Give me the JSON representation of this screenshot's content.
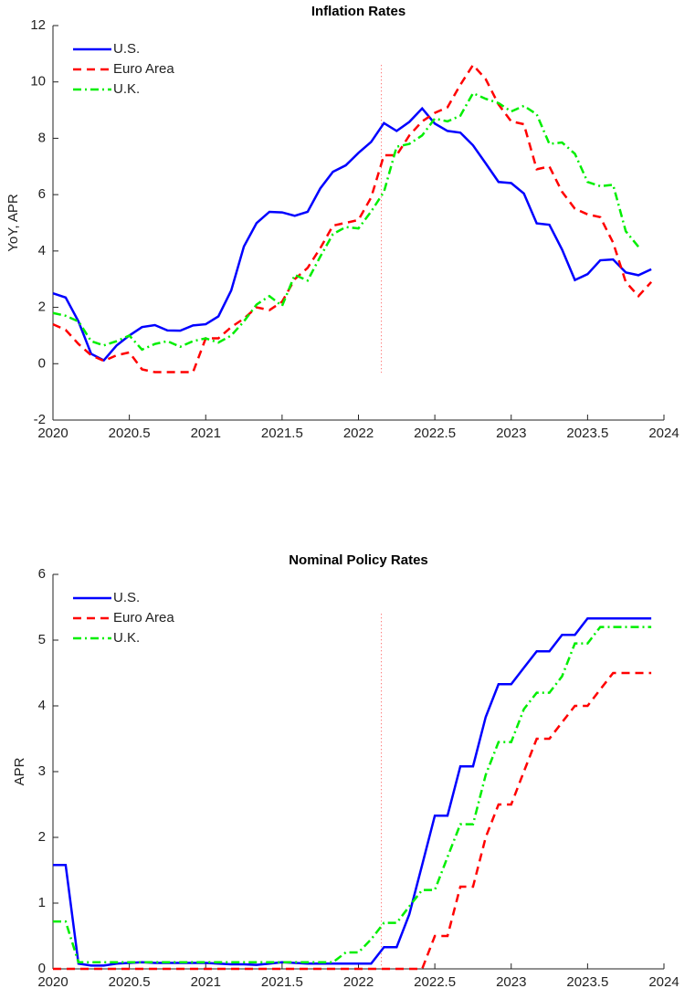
{
  "chart_data": [
    {
      "type": "line",
      "title": "Inflation Rates",
      "ylabel": "YoY, APR",
      "x": [
        2020,
        2020.083,
        2020.167,
        2020.25,
        2020.333,
        2020.417,
        2020.5,
        2020.583,
        2020.667,
        2020.75,
        2020.833,
        2020.917,
        2021,
        2021.083,
        2021.167,
        2021.25,
        2021.333,
        2021.417,
        2021.5,
        2021.583,
        2021.667,
        2021.75,
        2021.833,
        2021.917,
        2022,
        2022.083,
        2022.167,
        2022.25,
        2022.333,
        2022.417,
        2022.5,
        2022.583,
        2022.667,
        2022.75,
        2022.833,
        2022.917,
        2023,
        2023.083,
        2023.167,
        2023.25,
        2023.333,
        2023.417,
        2023.5,
        2023.583,
        2023.667,
        2023.75,
        2023.833,
        2023.917
      ],
      "series": [
        {
          "name": "U.S.",
          "color": "#0000ff",
          "values": [
            2.5,
            2.35,
            1.5,
            0.35,
            0.12,
            0.65,
            1.0,
            1.3,
            1.37,
            1.18,
            1.17,
            1.36,
            1.4,
            1.68,
            2.6,
            4.16,
            4.99,
            5.39,
            5.37,
            5.25,
            5.39,
            6.22,
            6.81,
            7.04,
            7.48,
            7.87,
            8.54,
            8.26,
            8.58,
            9.06,
            8.52,
            8.26,
            8.2,
            7.75,
            7.11,
            6.45,
            6.41,
            6.04,
            4.98,
            4.93,
            4.05,
            2.97,
            3.18,
            3.67,
            3.7,
            3.24,
            3.14,
            3.35
          ]
        },
        {
          "name": "Euro Area",
          "color": "#ff0000",
          "values": [
            1.4,
            1.2,
            0.7,
            0.3,
            0.1,
            0.3,
            0.4,
            -0.2,
            -0.3,
            -0.3,
            -0.3,
            -0.3,
            0.9,
            0.9,
            1.3,
            1.6,
            2.0,
            1.9,
            2.2,
            3.0,
            3.4,
            4.1,
            4.9,
            5.0,
            5.1,
            5.9,
            7.4,
            7.4,
            8.1,
            8.6,
            8.9,
            9.1,
            9.9,
            10.6,
            10.1,
            9.2,
            8.6,
            8.5,
            6.9,
            7.0,
            6.1,
            5.5,
            5.3,
            5.2,
            4.3,
            2.9,
            2.4,
            2.9
          ]
        },
        {
          "name": "U.K.",
          "color": "#00ee00",
          "values": [
            1.8,
            1.7,
            1.5,
            0.8,
            0.65,
            0.8,
            1.0,
            0.5,
            0.7,
            0.8,
            0.6,
            0.8,
            0.9,
            0.75,
            1.0,
            1.5,
            2.1,
            2.4,
            2.05,
            3.15,
            2.95,
            3.8,
            4.6,
            4.85,
            4.8,
            5.4,
            6.1,
            7.7,
            7.8,
            8.1,
            8.7,
            8.6,
            8.8,
            9.6,
            9.4,
            9.25,
            8.95,
            9.15,
            8.85,
            7.8,
            7.85,
            7.45,
            6.45,
            6.3,
            6.35,
            4.7,
            4.15,
            null
          ]
        }
      ],
      "vline": 2022.15,
      "xlim": [
        2020,
        2024
      ],
      "xticks": [
        2020,
        2020.5,
        2021,
        2021.5,
        2022,
        2022.5,
        2023,
        2023.5,
        2024
      ],
      "ylim": [
        -2,
        12
      ],
      "yticks": [
        -2,
        0,
        2,
        4,
        6,
        8,
        10,
        12
      ],
      "legend": "upper left"
    },
    {
      "type": "line",
      "title": "Nominal Policy Rates",
      "ylabel": "APR",
      "x": [
        2020,
        2020.083,
        2020.167,
        2020.25,
        2020.333,
        2020.417,
        2020.5,
        2020.583,
        2020.667,
        2020.75,
        2020.833,
        2020.917,
        2021,
        2021.083,
        2021.167,
        2021.25,
        2021.333,
        2021.417,
        2021.5,
        2021.583,
        2021.667,
        2021.75,
        2021.833,
        2021.917,
        2022,
        2022.083,
        2022.167,
        2022.25,
        2022.333,
        2022.417,
        2022.5,
        2022.583,
        2022.667,
        2022.75,
        2022.833,
        2022.917,
        2023,
        2023.083,
        2023.167,
        2023.25,
        2023.333,
        2023.417,
        2023.5,
        2023.583,
        2023.667,
        2023.75,
        2023.833,
        2023.917
      ],
      "series": [
        {
          "name": "U.S.",
          "color": "#0000ff",
          "values": [
            1.58,
            1.58,
            0.08,
            0.05,
            0.05,
            0.08,
            0.09,
            0.1,
            0.09,
            0.09,
            0.09,
            0.09,
            0.09,
            0.08,
            0.07,
            0.07,
            0.06,
            0.08,
            0.1,
            0.09,
            0.08,
            0.08,
            0.08,
            0.08,
            0.08,
            0.08,
            0.33,
            0.33,
            0.83,
            1.58,
            2.33,
            2.33,
            3.08,
            3.08,
            3.83,
            4.33,
            4.33,
            4.58,
            4.83,
            4.83,
            5.08,
            5.08,
            5.33,
            5.33,
            5.33,
            5.33,
            5.33,
            5.33
          ]
        },
        {
          "name": "Euro Area",
          "color": "#ff0000",
          "values": [
            0,
            0,
            0,
            0,
            0,
            0,
            0,
            0,
            0,
            0,
            0,
            0,
            0,
            0,
            0,
            0,
            0,
            0,
            0,
            0,
            0,
            0,
            0,
            0,
            0,
            0,
            0,
            0,
            0,
            0,
            0.5,
            0.5,
            1.25,
            1.25,
            2.0,
            2.5,
            2.5,
            3.0,
            3.5,
            3.5,
            3.75,
            4.0,
            4.0,
            4.25,
            4.5,
            4.5,
            4.5,
            4.5
          ]
        },
        {
          "name": "U.K.",
          "color": "#00ee00",
          "values": [
            0.72,
            0.72,
            0.1,
            0.1,
            0.1,
            0.1,
            0.1,
            0.1,
            0.1,
            0.1,
            0.1,
            0.1,
            0.1,
            0.1,
            0.1,
            0.1,
            0.1,
            0.1,
            0.1,
            0.1,
            0.1,
            0.1,
            0.1,
            0.25,
            0.25,
            0.45,
            0.7,
            0.7,
            0.95,
            1.2,
            1.2,
            1.7,
            2.2,
            2.2,
            2.95,
            3.45,
            3.45,
            3.95,
            4.2,
            4.2,
            4.45,
            4.95,
            4.95,
            5.2,
            5.2,
            5.2,
            5.2,
            5.2
          ]
        }
      ],
      "vline": 2022.15,
      "xlim": [
        2020,
        2024
      ],
      "xticks": [
        2020,
        2020.5,
        2021,
        2021.5,
        2022,
        2022.5,
        2023,
        2023.5,
        2024
      ],
      "ylim": [
        0,
        6
      ],
      "yticks": [
        0,
        1,
        2,
        3,
        4,
        5,
        6
      ],
      "legend": "upper left"
    }
  ]
}
